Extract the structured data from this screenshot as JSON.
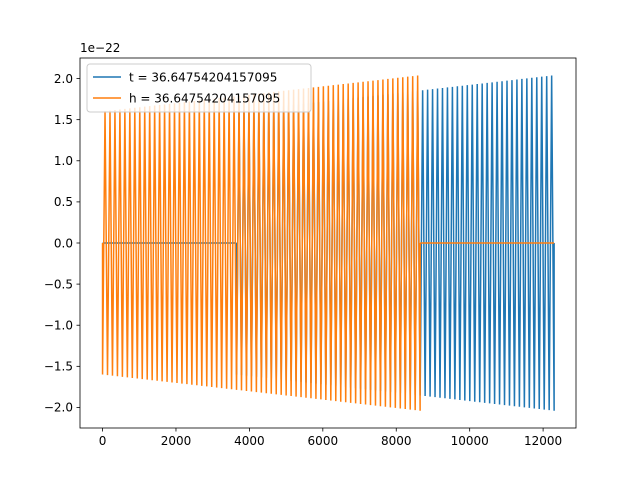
{
  "chart_data": {
    "type": "line",
    "offset_text": "1e−22",
    "xlim": [
      -614,
      12896
    ],
    "ylim": [
      -2.25,
      2.25
    ],
    "x_ticks": [
      {
        "value": 0,
        "label": "0"
      },
      {
        "value": 2000,
        "label": "2000"
      },
      {
        "value": 4000,
        "label": "4000"
      },
      {
        "value": 6000,
        "label": "6000"
      },
      {
        "value": 8000,
        "label": "8000"
      },
      {
        "value": 10000,
        "label": "10000"
      },
      {
        "value": 12000,
        "label": "12000"
      }
    ],
    "y_ticks": [
      {
        "value": -2.0,
        "label": "−2.0"
      },
      {
        "value": -1.5,
        "label": "−1.5"
      },
      {
        "value": -1.0,
        "label": "−1.0"
      },
      {
        "value": -0.5,
        "label": "−0.5"
      },
      {
        "value": 0.0,
        "label": "0.0"
      },
      {
        "value": 0.5,
        "label": "0.5"
      },
      {
        "value": 1.0,
        "label": "1.0"
      },
      {
        "value": 1.5,
        "label": "1.5"
      },
      {
        "value": 2.0,
        "label": "2.0"
      }
    ],
    "legend_position": "top-left",
    "series": [
      {
        "name": "t = 36.64754204157095",
        "color": "#1f77b4",
        "x_start": 0,
        "x_end": 12300,
        "oscillation_cycles": 91,
        "segments": [
          {
            "x_start": 0,
            "x_end": 3650,
            "kind": "zero"
          },
          {
            "x_start": 3650,
            "x_end": 12300,
            "kind": "oscillation",
            "amp_start": 1.6,
            "amp_end": 2.04
          }
        ]
      },
      {
        "name": "h = 36.64754204157095",
        "color": "#ff7f0e",
        "x_start": 0,
        "x_end": 12300,
        "oscillation_cycles": 91,
        "segments": [
          {
            "x_start": 0,
            "x_end": 8650,
            "kind": "oscillation",
            "amp_start": 1.6,
            "amp_end": 2.04
          },
          {
            "x_start": 8650,
            "x_end": 12300,
            "kind": "zero"
          }
        ]
      }
    ]
  }
}
